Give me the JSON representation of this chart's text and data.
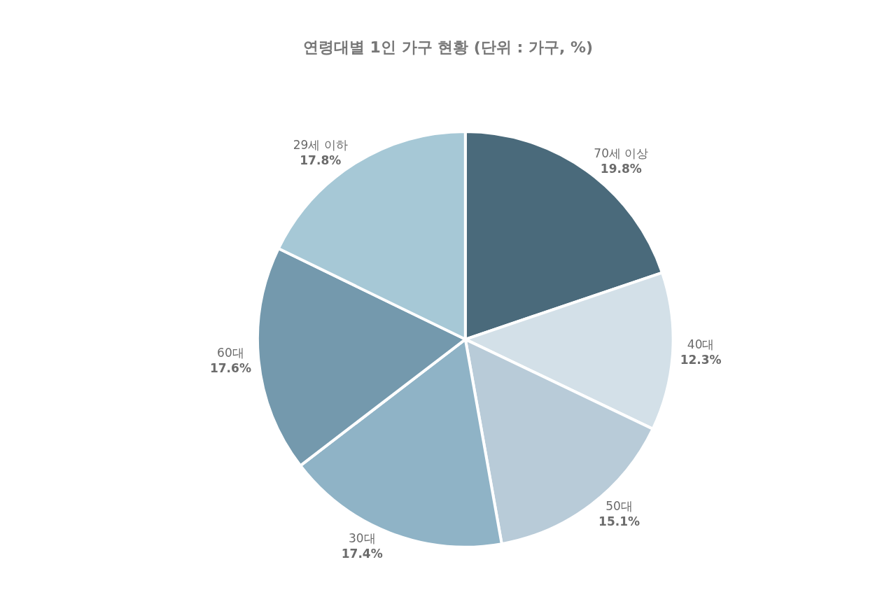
{
  "chart_data": {
    "type": "pie",
    "title": "연령대별 1인 가구 현황 (단위 : 가구, %)",
    "categories": [
      "70세 이상",
      "40대",
      "50대",
      "30대",
      "60대",
      "29세 이하"
    ],
    "values": [
      19.8,
      12.3,
      15.1,
      17.4,
      17.6,
      17.8
    ],
    "value_labels": [
      "19.8%",
      "12.3%",
      "15.1%",
      "17.4%",
      "17.6%",
      "17.8%"
    ],
    "colors": [
      "#4a6a7b",
      "#d3e0e8",
      "#b8cbd8",
      "#8fb3c6",
      "#7499ad",
      "#a6c8d6"
    ],
    "legend": false
  }
}
